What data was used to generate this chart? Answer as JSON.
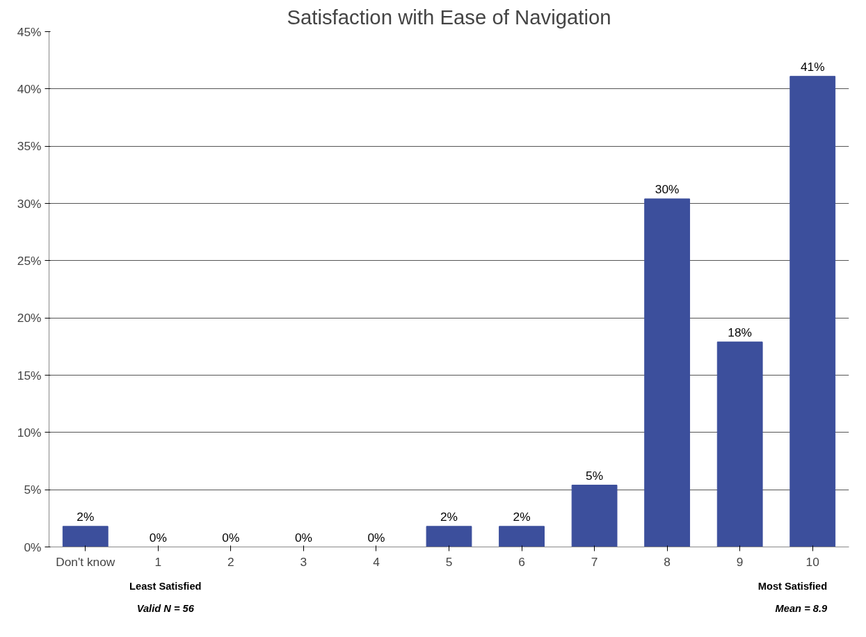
{
  "chart_data": {
    "type": "bar",
    "title": "Satisfaction with Ease of Navigation",
    "categories": [
      "Don't know",
      "1",
      "2",
      "3",
      "4",
      "5",
      "6",
      "7",
      "8",
      "9",
      "10"
    ],
    "values": [
      1.8,
      0,
      0,
      0,
      0,
      1.8,
      1.8,
      5.4,
      30.4,
      17.9,
      41.1
    ],
    "value_labels": [
      "2%",
      "0%",
      "0%",
      "0%",
      "0%",
      "2%",
      "2%",
      "5%",
      "30%",
      "18%",
      "41%"
    ],
    "color": "#3c4f9c",
    "ylim": [
      0,
      45
    ],
    "yticks": [
      {
        "value": 0,
        "label": "0%"
      },
      {
        "value": 5,
        "label": "5%"
      },
      {
        "value": 10,
        "label": "10%"
      },
      {
        "value": 15,
        "label": "15%"
      },
      {
        "value": 20,
        "label": "20%"
      },
      {
        "value": 25,
        "label": "25%"
      },
      {
        "value": 30,
        "label": "30%"
      },
      {
        "value": 35,
        "label": "35%"
      },
      {
        "value": 40,
        "label": "40%"
      },
      {
        "value": 45,
        "label": "45%"
      }
    ],
    "grid": "y",
    "annotations": [
      "Least Satisfied",
      "Valid N = 56",
      "Most Satisfied",
      "Mean = 8.9"
    ]
  }
}
